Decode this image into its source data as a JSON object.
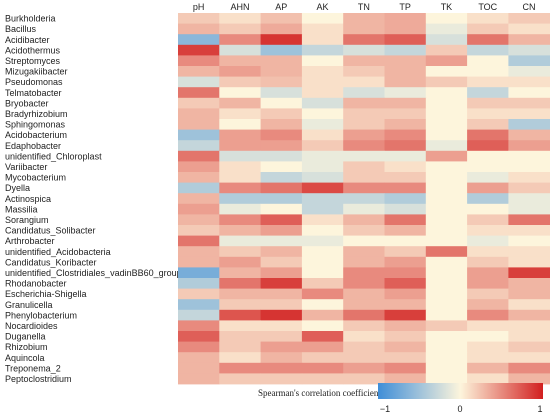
{
  "chart_data": {
    "type": "heatmap",
    "columns": [
      "pH",
      "AHN",
      "AP",
      "AK",
      "TN",
      "TP",
      "TK",
      "TOC",
      "CN"
    ],
    "rows": [
      "Burkholderia",
      "Bacillus",
      "Acidibacter",
      "Acidothermus",
      "Streptomyces",
      "Mizugakiibacter",
      "Pseudomonas",
      "Telmatobacter",
      "Bryobacter",
      "Bradyrhizobium",
      "Sphingomonas",
      "Acidobacterium",
      "Edaphobacter",
      "unidentified_Chloroplast",
      "Variibacter",
      "Mycobacterium",
      "Dyella",
      "Actinospica",
      "Massilia",
      "Sorangium",
      "Candidatus_Solibacter",
      "Arthrobacter",
      "unidentified_Acidobacteria",
      "Candidatus_Koribacter",
      "unidentified_Clostridiales_vadinBB60_group",
      "Rhodanobacter",
      "Escherichia-Shigella",
      "Granulicella",
      "Phenylobacterium",
      "Nocardioides",
      "Duganella",
      "Rhizobium",
      "Aquincola",
      "Treponema_2",
      "Peptoclostridium"
    ],
    "values": [
      [
        0.2,
        0.1,
        0.25,
        0.0,
        0.3,
        0.35,
        0.0,
        0.1,
        0.2
      ],
      [
        0.3,
        0.2,
        0.35,
        0.1,
        0.3,
        0.35,
        -0.1,
        0.2,
        0.1
      ],
      [
        -0.6,
        0.5,
        0.9,
        0.1,
        0.6,
        0.7,
        -0.2,
        0.6,
        0.3
      ],
      [
        0.85,
        -0.2,
        -0.5,
        -0.3,
        -0.2,
        -0.3,
        0.2,
        -0.3,
        -0.2
      ],
      [
        0.5,
        0.3,
        0.3,
        0.0,
        0.3,
        0.3,
        0.4,
        0.0,
        -0.4
      ],
      [
        0.3,
        0.4,
        0.3,
        0.1,
        0.2,
        0.3,
        0.0,
        0.0,
        -0.1
      ],
      [
        -0.2,
        0.2,
        0.25,
        0.1,
        0.1,
        0.3,
        0.2,
        0.1,
        0.1
      ],
      [
        0.6,
        0.0,
        -0.2,
        0.1,
        -0.2,
        -0.1,
        0.0,
        -0.3,
        0.0
      ],
      [
        0.2,
        0.3,
        0.0,
        -0.2,
        0.3,
        0.3,
        0.0,
        0.2,
        0.2
      ],
      [
        0.3,
        0.1,
        0.2,
        0.0,
        0.2,
        0.2,
        0.0,
        0.1,
        0.1
      ],
      [
        0.3,
        0.0,
        0.3,
        -0.1,
        0.2,
        0.3,
        0.0,
        0.2,
        -0.4
      ],
      [
        -0.5,
        0.4,
        0.5,
        0.1,
        0.4,
        0.5,
        0.0,
        0.6,
        0.3
      ],
      [
        -0.3,
        0.4,
        0.4,
        0.2,
        0.5,
        0.6,
        -0.1,
        0.7,
        0.4
      ],
      [
        0.6,
        -0.2,
        -0.2,
        -0.1,
        -0.1,
        -0.1,
        0.4,
        0.0,
        0.0
      ],
      [
        0.4,
        0.1,
        0.0,
        -0.1,
        0.2,
        0.1,
        0.0,
        0.0,
        0.0
      ],
      [
        0.3,
        0.1,
        -0.3,
        -0.2,
        0.2,
        0.2,
        0.0,
        -0.1,
        0.1
      ],
      [
        -0.4,
        0.5,
        0.6,
        0.8,
        0.5,
        0.5,
        0.0,
        0.4,
        0.2
      ],
      [
        0.3,
        -0.4,
        -0.4,
        -0.3,
        -0.3,
        -0.4,
        0.0,
        -0.4,
        -0.1
      ],
      [
        0.4,
        -0.1,
        0.0,
        -0.3,
        -0.1,
        -0.2,
        0.0,
        0.0,
        -0.1
      ],
      [
        0.3,
        0.5,
        0.7,
        0.1,
        0.3,
        0.6,
        0.0,
        0.2,
        0.6
      ],
      [
        0.2,
        0.3,
        0.4,
        0.0,
        0.2,
        0.3,
        0.0,
        0.1,
        0.1
      ],
      [
        0.6,
        -0.1,
        -0.1,
        -0.1,
        0.0,
        0.0,
        0.0,
        -0.1,
        0.0
      ],
      [
        0.3,
        0.2,
        0.3,
        0.0,
        0.3,
        0.2,
        0.6,
        0.1,
        0.1
      ],
      [
        0.3,
        0.4,
        0.2,
        0.0,
        0.3,
        0.4,
        0.0,
        0.2,
        0.1
      ],
      [
        -0.7,
        0.3,
        0.4,
        0.0,
        0.5,
        0.5,
        0.0,
        0.4,
        0.85
      ],
      [
        -0.4,
        0.6,
        0.85,
        0.2,
        0.5,
        0.7,
        0.0,
        0.4,
        0.3
      ],
      [
        0.2,
        0.3,
        0.3,
        0.5,
        0.3,
        0.4,
        0.0,
        0.2,
        0.3
      ],
      [
        -0.5,
        0.2,
        0.2,
        0.0,
        0.3,
        0.3,
        0.0,
        0.3,
        0.1
      ],
      [
        -0.3,
        0.75,
        0.9,
        0.3,
        0.6,
        0.85,
        0.0,
        0.5,
        0.3
      ],
      [
        0.5,
        0.1,
        0.1,
        0.0,
        0.2,
        0.3,
        0.2,
        0.1,
        0.1
      ],
      [
        0.7,
        0.2,
        0.2,
        0.7,
        0.1,
        0.2,
        0.0,
        0.0,
        0.1
      ],
      [
        0.5,
        0.2,
        0.4,
        0.4,
        0.2,
        0.3,
        0.0,
        0.1,
        0.2
      ],
      [
        0.3,
        0.1,
        0.3,
        0.2,
        0.2,
        0.2,
        0.0,
        0.1,
        0.1
      ],
      [
        0.3,
        0.5,
        0.5,
        0.5,
        0.4,
        0.5,
        0.0,
        0.3,
        0.5
      ],
      [
        0.3,
        0.2,
        0.2,
        0.2,
        0.2,
        0.3,
        0.0,
        0.1,
        0.3
      ]
    ],
    "colorbar": {
      "label": "Spearman's correlation coefficient",
      "range": [
        -1,
        1
      ],
      "tick_labels": [
        "−1",
        "0",
        "1"
      ],
      "colors": {
        "low": "#3f8ed8",
        "mid": "#fdf5dc",
        "high": "#d21f1f"
      }
    }
  }
}
